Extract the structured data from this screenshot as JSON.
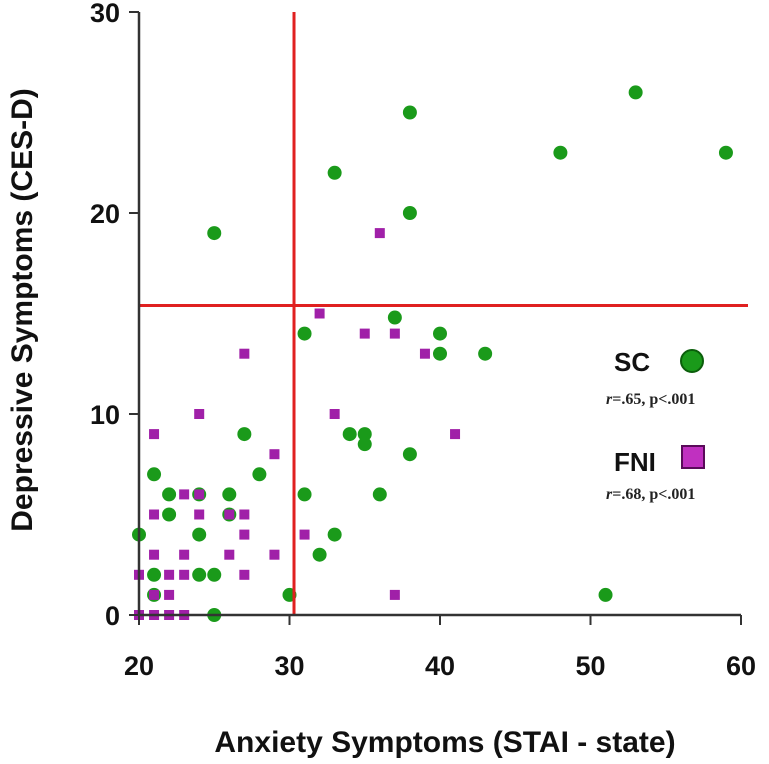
{
  "chart_data": {
    "type": "scatter",
    "xlabel": "Anxiety Symptoms (STAI - state)",
    "ylabel": "Depressive Symptoms (CES-D)",
    "xlim": [
      20,
      60
    ],
    "ylim": [
      0,
      30
    ],
    "x_ticks": [
      "20",
      "30",
      "40",
      "50",
      "60"
    ],
    "y_ticks": [
      "0",
      "10",
      "20",
      "30"
    ],
    "grid": false,
    "reference_lines": {
      "x": 30.3,
      "y": 15.4,
      "color": "#e02020"
    },
    "series": [
      {
        "name": "SC",
        "marker": "circle",
        "color": "#1a9a1a",
        "stat": {
          "r": "r",
          "rest": "=.65, p<.001"
        },
        "points": [
          [
            20,
            4
          ],
          [
            21,
            7
          ],
          [
            21,
            2
          ],
          [
            21,
            1
          ],
          [
            22,
            6
          ],
          [
            22,
            5
          ],
          [
            24,
            6
          ],
          [
            24,
            4
          ],
          [
            24,
            2
          ],
          [
            25,
            2
          ],
          [
            25,
            0
          ],
          [
            25,
            19
          ],
          [
            26,
            6
          ],
          [
            26,
            5
          ],
          [
            27,
            9
          ],
          [
            28,
            7
          ],
          [
            30,
            1
          ],
          [
            31,
            14
          ],
          [
            31,
            6
          ],
          [
            32,
            3
          ],
          [
            33,
            22
          ],
          [
            33,
            4
          ],
          [
            34,
            9
          ],
          [
            35,
            9
          ],
          [
            35,
            8.5
          ],
          [
            36,
            6
          ],
          [
            37,
            14.8
          ],
          [
            38,
            25
          ],
          [
            38,
            20
          ],
          [
            38,
            8
          ],
          [
            40,
            14
          ],
          [
            40,
            13
          ],
          [
            43,
            13
          ],
          [
            48,
            23
          ],
          [
            51,
            1
          ],
          [
            53,
            26
          ],
          [
            59,
            23
          ]
        ]
      },
      {
        "name": "FNI",
        "marker": "square",
        "color": "#a020a8",
        "stat": {
          "r": "r",
          "rest": "=.68, p<.001"
        },
        "points": [
          [
            20,
            2
          ],
          [
            20,
            0
          ],
          [
            21,
            9
          ],
          [
            21,
            5
          ],
          [
            21,
            3
          ],
          [
            21,
            1
          ],
          [
            21,
            0
          ],
          [
            22,
            2
          ],
          [
            22,
            1
          ],
          [
            22,
            0
          ],
          [
            23,
            6
          ],
          [
            23,
            3
          ],
          [
            23,
            2
          ],
          [
            23,
            0
          ],
          [
            24,
            10
          ],
          [
            24,
            6
          ],
          [
            24,
            5
          ],
          [
            26,
            5
          ],
          [
            26,
            3
          ],
          [
            27,
            13
          ],
          [
            27,
            5
          ],
          [
            27,
            4
          ],
          [
            27,
            2
          ],
          [
            29,
            8
          ],
          [
            29,
            3
          ],
          [
            31,
            4
          ],
          [
            32,
            15
          ],
          [
            33,
            10
          ],
          [
            35,
            14
          ],
          [
            36,
            19
          ],
          [
            37,
            14
          ],
          [
            37,
            1
          ],
          [
            39,
            13
          ],
          [
            41,
            9
          ]
        ]
      }
    ]
  }
}
